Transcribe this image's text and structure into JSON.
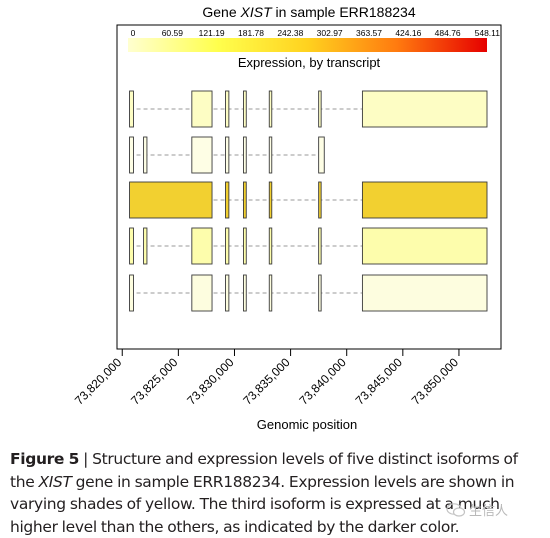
{
  "chart_data": {
    "type": "gene-structure-heatmap",
    "title_prefix": "Gene ",
    "title_gene": "XIST",
    "title_suffix": " in sample ERR188234",
    "legend": {
      "title": "Expression, by transcript",
      "ticks": [
        "0",
        "60.59",
        "121.19",
        "181.78",
        "242.38",
        "302.97",
        "363.57",
        "424.16",
        "484.76",
        "548.11"
      ],
      "min": 0,
      "max": 548.11,
      "colors": [
        "#ffffd0",
        "#ffff4d",
        "#ffd21f",
        "#ff7a0f",
        "#e60000"
      ]
    },
    "xlabel": "Genomic position",
    "x_ticks": [
      73820000,
      73825000,
      73830000,
      73835000,
      73840000,
      73845000,
      73850000
    ],
    "x_tick_labels": [
      "73,820,000",
      "73,825,000",
      "73,830,000",
      "73,835,000",
      "73,840,000",
      "73,845,000",
      "73,850,000"
    ],
    "xlim": [
      73819500,
      73853000
    ],
    "transcripts": [
      {
        "color": "#fdfdc4",
        "exons": [
          [
            73820650,
            73821000
          ],
          [
            73826200,
            73828000
          ],
          [
            73829200,
            73829500
          ],
          [
            73830800,
            73831050
          ],
          [
            73833100,
            73833300
          ],
          [
            73837500,
            73837650
          ],
          [
            73841400,
            73852500
          ]
        ]
      },
      {
        "color": "#fefee5",
        "exons": [
          [
            73820650,
            73821000
          ],
          [
            73821900,
            73822200
          ],
          [
            73826200,
            73828000
          ],
          [
            73829200,
            73829500
          ],
          [
            73830800,
            73831050
          ],
          [
            73833100,
            73833300
          ],
          [
            73837500,
            73838000
          ]
        ]
      },
      {
        "color": "#f2d030",
        "exons": [
          [
            73820650,
            73828000
          ],
          [
            73829200,
            73829500
          ],
          [
            73830800,
            73831050
          ],
          [
            73833100,
            73833300
          ],
          [
            73837500,
            73837650
          ],
          [
            73841400,
            73852500
          ]
        ]
      },
      {
        "color": "#fdfdac",
        "exons": [
          [
            73820650,
            73821000
          ],
          [
            73821900,
            73822200
          ],
          [
            73826200,
            73828000
          ],
          [
            73829200,
            73829500
          ],
          [
            73830800,
            73831050
          ],
          [
            73833100,
            73833300
          ],
          [
            73837500,
            73837650
          ],
          [
            73841400,
            73852500
          ]
        ]
      },
      {
        "color": "#fdfddf",
        "exons": [
          [
            73820650,
            73821000
          ],
          [
            73826200,
            73828000
          ],
          [
            73829200,
            73829500
          ],
          [
            73830800,
            73831050
          ],
          [
            73833100,
            73833300
          ],
          [
            73837500,
            73837650
          ],
          [
            73841400,
            73852500
          ]
        ]
      }
    ]
  },
  "caption": {
    "label": "Figure 5",
    "separator": " | ",
    "text_1": "Structure and expression levels of five distinct isoforms of the ",
    "gene": "XIST",
    "text_2": " gene in sample ERR188234. Expression levels are shown in varying shades of yellow. The third isoform is expressed at a much higher level than the others, as indicated by the darker color."
  },
  "watermark": "生信人"
}
